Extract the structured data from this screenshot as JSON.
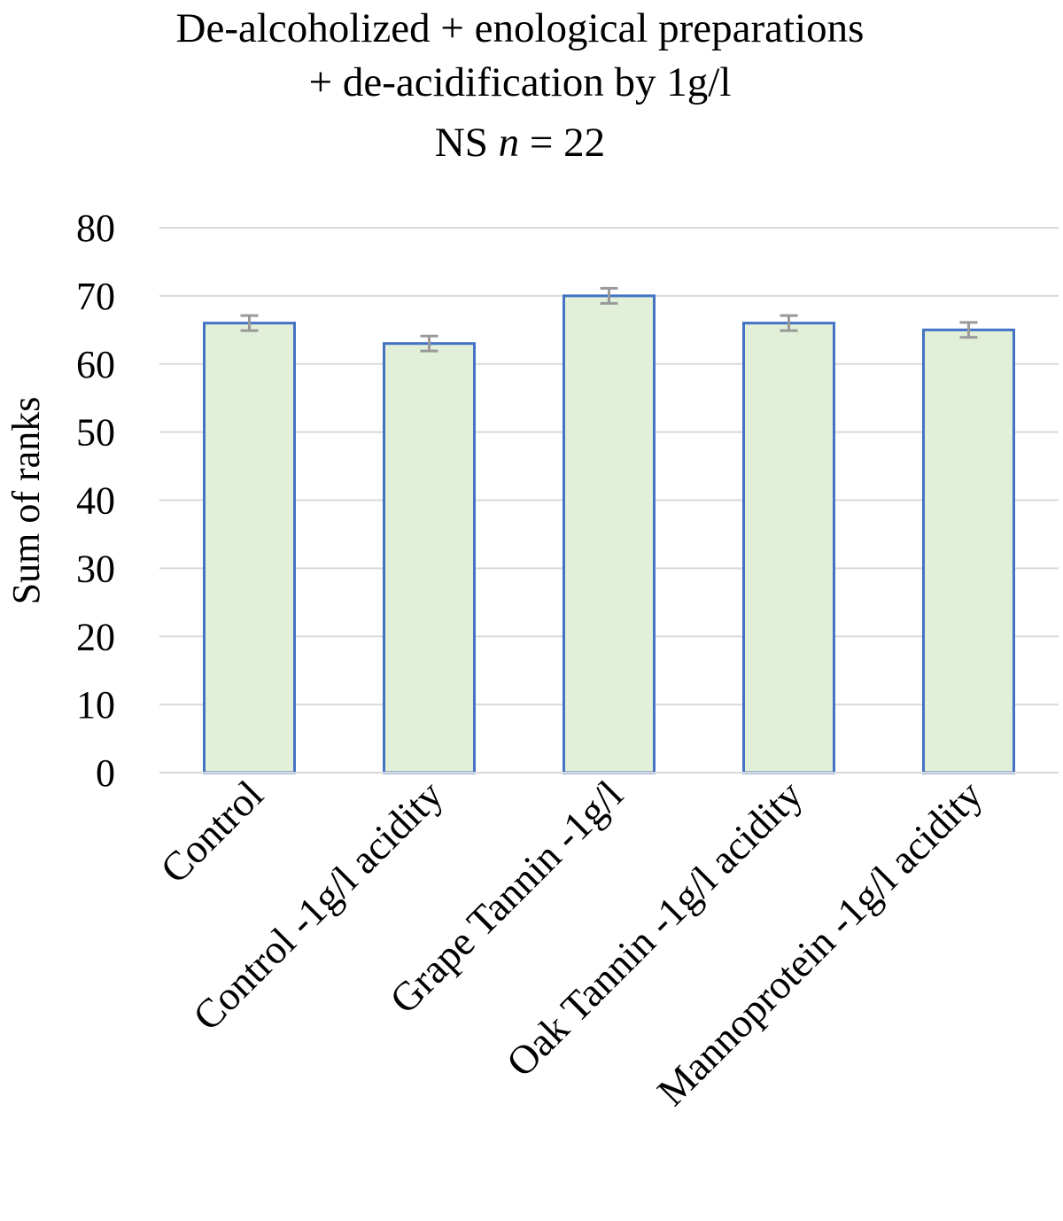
{
  "chart_data": {
    "type": "bar",
    "title_lines": [
      "De-alcoholized + enological preparations",
      "+ de-acidification by 1g/l"
    ],
    "subtitle_prefix": "NS ",
    "subtitle_italic": "n",
    "subtitle_suffix": " = 22",
    "ylabel": "Sum of ranks",
    "xlabel": "",
    "ylim": [
      0,
      80
    ],
    "yticks": [
      "0",
      "10",
      "20",
      "30",
      "40",
      "50",
      "60",
      "70",
      "80"
    ],
    "grid": true,
    "legend": "none",
    "categories": [
      "Control",
      "Control -1g/l acidity",
      "Grape Tannin -1g/l",
      "Oak Tannin -1g/l acidity",
      "Mannoprotein -1g/l acidity"
    ],
    "values": [
      66,
      63,
      70,
      66,
      65
    ],
    "error": [
      1.1,
      1.1,
      1.1,
      1.1,
      1.1
    ],
    "colors": {
      "bar_fill": "#e2efd9",
      "bar_stroke": "#4472c4",
      "error_bar": "#999999",
      "grid": "#d9d9d9"
    }
  }
}
